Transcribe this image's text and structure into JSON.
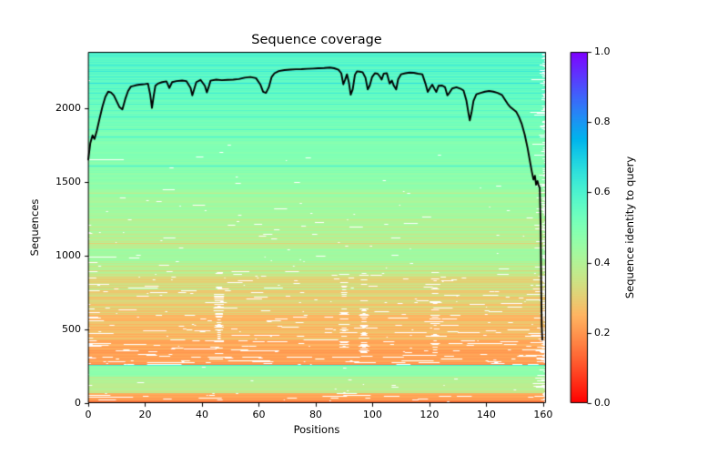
{
  "title": "Sequence coverage",
  "axes": {
    "xlabel": "Positions",
    "ylabel": "Sequences",
    "xlim": [
      0,
      161
    ],
    "ylim": [
      0,
      2380
    ],
    "x_ticks": [
      0,
      20,
      40,
      60,
      80,
      100,
      120,
      140,
      160
    ],
    "y_ticks": [
      0,
      500,
      1000,
      1500,
      2000
    ]
  },
  "colorbar": {
    "label": "Sequence identity to query",
    "ticks": [
      "0.0",
      "0.2",
      "0.4",
      "0.6",
      "0.8",
      "1.0"
    ],
    "tick_values": [
      0.0,
      0.2,
      0.4,
      0.6,
      0.8,
      1.0
    ],
    "colormap": "rainbow_r",
    "vmin": 0.0,
    "vmax": 1.0
  },
  "colors": {
    "background": "#ffffff",
    "coverage_line": "#000000",
    "gap": "#ffffff",
    "spine": "#000000"
  },
  "chart_data": {
    "type": "heatmap",
    "title": "Sequence coverage",
    "xlabel": "Positions",
    "ylabel": "Sequences",
    "colorbar_label": "Sequence identity to query",
    "colormap": "rainbow_r",
    "n_positions": 161,
    "n_sequences": 2380,
    "xlim": [
      0,
      161
    ],
    "ylim": [
      0,
      2380
    ],
    "identity_range": [
      0.0,
      1.0
    ],
    "coverage_line": {
      "name": "number of sequences covering each position",
      "color": "#000000",
      "points": [
        [
          0,
          1650
        ],
        [
          0.7,
          1760
        ],
        [
          1.5,
          1815
        ],
        [
          2.2,
          1790
        ],
        [
          3,
          1845
        ],
        [
          4,
          1930
        ],
        [
          5,
          2010
        ],
        [
          6,
          2075
        ],
        [
          7,
          2110
        ],
        [
          8,
          2105
        ],
        [
          9,
          2085
        ],
        [
          10,
          2045
        ],
        [
          11,
          2005
        ],
        [
          12,
          1990
        ],
        [
          13,
          2060
        ],
        [
          14,
          2115
        ],
        [
          15,
          2145
        ],
        [
          16,
          2150
        ],
        [
          17,
          2155
        ],
        [
          18,
          2158
        ],
        [
          19,
          2160
        ],
        [
          20,
          2162
        ],
        [
          21,
          2165
        ],
        [
          21.8,
          2090
        ],
        [
          22.4,
          2000
        ],
        [
          23,
          2080
        ],
        [
          23.6,
          2150
        ],
        [
          24.5,
          2165
        ],
        [
          26,
          2175
        ],
        [
          27.5,
          2180
        ],
        [
          28.5,
          2135
        ],
        [
          29.5,
          2175
        ],
        [
          31,
          2182
        ],
        [
          33,
          2186
        ],
        [
          34.5,
          2182
        ],
        [
          36,
          2135
        ],
        [
          36.6,
          2085
        ],
        [
          37.3,
          2130
        ],
        [
          38,
          2175
        ],
        [
          39.5,
          2190
        ],
        [
          41,
          2150
        ],
        [
          41.7,
          2105
        ],
        [
          42.4,
          2145
        ],
        [
          43,
          2185
        ],
        [
          45,
          2192
        ],
        [
          47,
          2188
        ],
        [
          49,
          2190
        ],
        [
          51,
          2192
        ],
        [
          53,
          2196
        ],
        [
          55,
          2205
        ],
        [
          57,
          2210
        ],
        [
          59,
          2202
        ],
        [
          60.5,
          2160
        ],
        [
          61.5,
          2110
        ],
        [
          62.5,
          2102
        ],
        [
          63.5,
          2140
        ],
        [
          64.5,
          2210
        ],
        [
          65.5,
          2235
        ],
        [
          67,
          2250
        ],
        [
          69,
          2257
        ],
        [
          71,
          2260
        ],
        [
          73,
          2262
        ],
        [
          75,
          2263
        ],
        [
          77,
          2265
        ],
        [
          79,
          2267
        ],
        [
          81,
          2269
        ],
        [
          83,
          2271
        ],
        [
          85,
          2274
        ],
        [
          86.5,
          2269
        ],
        [
          88,
          2259
        ],
        [
          89,
          2235
        ],
        [
          89.7,
          2160
        ],
        [
          90.3,
          2190
        ],
        [
          91,
          2228
        ],
        [
          91.7,
          2170
        ],
        [
          92.3,
          2090
        ],
        [
          93,
          2125
        ],
        [
          93.8,
          2225
        ],
        [
          94.5,
          2248
        ],
        [
          95.5,
          2246
        ],
        [
          96.5,
          2242
        ],
        [
          97.5,
          2205
        ],
        [
          98.3,
          2125
        ],
        [
          99,
          2152
        ],
        [
          99.8,
          2208
        ],
        [
          100.8,
          2235
        ],
        [
          101.8,
          2232
        ],
        [
          102.6,
          2212
        ],
        [
          103.2,
          2192
        ],
        [
          103.9,
          2232
        ],
        [
          105,
          2236
        ],
        [
          106,
          2165
        ],
        [
          106.8,
          2185
        ],
        [
          107.5,
          2150
        ],
        [
          108.3,
          2125
        ],
        [
          109,
          2195
        ],
        [
          110,
          2228
        ],
        [
          111.5,
          2235
        ],
        [
          113,
          2240
        ],
        [
          114.5,
          2238
        ],
        [
          116,
          2232
        ],
        [
          117.5,
          2228
        ],
        [
          118.6,
          2165
        ],
        [
          119.4,
          2108
        ],
        [
          120.2,
          2135
        ],
        [
          121,
          2158
        ],
        [
          121.8,
          2128
        ],
        [
          122.4,
          2108
        ],
        [
          123.2,
          2150
        ],
        [
          124.5,
          2152
        ],
        [
          125.5,
          2140
        ],
        [
          126.3,
          2085
        ],
        [
          127,
          2102
        ],
        [
          128,
          2132
        ],
        [
          129.5,
          2140
        ],
        [
          131,
          2130
        ],
        [
          132,
          2118
        ],
        [
          133,
          2050
        ],
        [
          133.7,
          1968
        ],
        [
          134.2,
          1915
        ],
        [
          134.8,
          1968
        ],
        [
          135.5,
          2048
        ],
        [
          136.5,
          2092
        ],
        [
          138,
          2102
        ],
        [
          139.5,
          2110
        ],
        [
          141,
          2115
        ],
        [
          142.5,
          2110
        ],
        [
          144,
          2102
        ],
        [
          145.5,
          2088
        ],
        [
          146.5,
          2058
        ],
        [
          147.5,
          2028
        ],
        [
          148.5,
          2005
        ],
        [
          149.5,
          1990
        ],
        [
          150.5,
          1975
        ],
        [
          151.5,
          1938
        ],
        [
          152.5,
          1890
        ],
        [
          153.5,
          1820
        ],
        [
          154.5,
          1730
        ],
        [
          155.3,
          1645
        ],
        [
          156,
          1570
        ],
        [
          156.6,
          1515
        ],
        [
          157.1,
          1540
        ],
        [
          157.5,
          1480
        ],
        [
          158,
          1505
        ],
        [
          158.4,
          1475
        ],
        [
          158.8,
          1460
        ],
        [
          159.1,
          1200
        ],
        [
          159.3,
          800
        ],
        [
          159.5,
          520
        ],
        [
          159.7,
          430
        ]
      ]
    },
    "identity_bands": [
      {
        "from": 0,
        "to": 18,
        "identity": [
          0.15,
          0.16
        ],
        "gap_density": 0.1,
        "jitter": 0.02,
        "late_start_p": 0.05,
        "trunc_p": 0.25,
        "streaky": false
      },
      {
        "from": 18,
        "to": 68,
        "identity": [
          0.21,
          0.24
        ],
        "gap_density": 0.35,
        "jitter": 0.02,
        "late_start_p": 0.15,
        "trunc_p": 0.45,
        "streaky": false
      },
      {
        "from": 68,
        "to": 180,
        "identity": [
          0.36,
          0.4
        ],
        "gap_density": 0.1,
        "jitter": 0.03,
        "late_start_p": 0.05,
        "trunc_p": 0.3,
        "streaky": false
      },
      {
        "from": 180,
        "to": 250,
        "identity": [
          0.47,
          0.47
        ],
        "gap_density": 0.04,
        "jitter": 0.01,
        "late_start_p": 0.02,
        "trunc_p": 0.25,
        "streaky": false
      },
      {
        "from": 250,
        "to": 258,
        "identity": [
          0.62,
          0.62
        ],
        "gap_density": 0.02,
        "jitter": 0.0,
        "late_start_p": 0.0,
        "trunc_p": 0.1,
        "streaky": false
      },
      {
        "from": 258,
        "to": 330,
        "identity": [
          0.2,
          0.22
        ],
        "gap_density": 0.65,
        "jitter": 0.03,
        "late_start_p": 0.3,
        "trunc_p": 0.6,
        "streaky": false
      },
      {
        "from": 330,
        "to": 480,
        "identity": [
          0.22,
          0.26
        ],
        "gap_density": 0.5,
        "jitter": 0.03,
        "late_start_p": 0.25,
        "trunc_p": 0.55,
        "streaky": true
      },
      {
        "from": 480,
        "to": 700,
        "identity": [
          0.26,
          0.3
        ],
        "gap_density": 0.3,
        "jitter": 0.04,
        "late_start_p": 0.15,
        "trunc_p": 0.45,
        "streaky": true
      },
      {
        "from": 700,
        "to": 900,
        "identity": [
          0.3,
          0.36
        ],
        "gap_density": 0.25,
        "jitter": 0.05,
        "late_start_p": 0.12,
        "trunc_p": 0.4,
        "streaky": true
      },
      {
        "from": 900,
        "to": 960,
        "identity": [
          0.37,
          0.4
        ],
        "gap_density": 0.15,
        "jitter": 0.04,
        "late_start_p": 0.08,
        "trunc_p": 0.35,
        "streaky": false
      },
      {
        "from": 960,
        "to": 1040,
        "identity": [
          0.44,
          0.44
        ],
        "gap_density": 0.1,
        "jitter": 0.02,
        "late_start_p": 0.05,
        "trunc_p": 0.3,
        "streaky": false
      },
      {
        "from": 1040,
        "to": 1250,
        "identity": [
          0.38,
          0.42
        ],
        "gap_density": 0.15,
        "jitter": 0.04,
        "late_start_p": 0.06,
        "trunc_p": 0.35,
        "streaky": false
      },
      {
        "from": 1250,
        "to": 1500,
        "identity": [
          0.42,
          0.46
        ],
        "gap_density": 0.1,
        "jitter": 0.03,
        "late_start_p": 0.05,
        "trunc_p": 0.3,
        "streaky": false
      },
      {
        "from": 1500,
        "to": 1750,
        "identity": [
          0.47,
          0.5
        ],
        "gap_density": 0.05,
        "jitter": 0.02,
        "late_start_p": 0.03,
        "trunc_p": 0.3,
        "streaky": false
      },
      {
        "from": 1750,
        "to": 2050,
        "identity": [
          0.5,
          0.54
        ],
        "gap_density": 0.03,
        "jitter": 0.02,
        "late_start_p": 0.03,
        "trunc_p": 0.35,
        "streaky": false
      },
      {
        "from": 2050,
        "to": 2380,
        "identity": [
          0.54,
          0.58
        ],
        "gap_density": 0.02,
        "jitter": 0.02,
        "late_start_p": 0.02,
        "trunc_p": 0.4,
        "streaky": false
      }
    ],
    "identity_stripes": [
      {
        "seq": 2368,
        "rows": 7,
        "identity": 0.61
      },
      {
        "seq": 2352,
        "rows": 5,
        "identity": 0.63
      },
      {
        "seq": 2338,
        "rows": 6,
        "identity": 0.59
      },
      {
        "seq": 2322,
        "rows": 5,
        "identity": 0.62
      },
      {
        "seq": 2306,
        "rows": 5,
        "identity": 0.6
      },
      {
        "seq": 2290,
        "rows": 6,
        "identity": 0.63
      },
      {
        "seq": 2274,
        "rows": 5,
        "identity": 0.58
      },
      {
        "seq": 2258,
        "rows": 5,
        "identity": 0.61
      },
      {
        "seq": 2242,
        "rows": 6,
        "identity": 0.64
      },
      {
        "seq": 2226,
        "rows": 5,
        "identity": 0.59
      },
      {
        "seq": 2208,
        "rows": 6,
        "identity": 0.62
      },
      {
        "seq": 2188,
        "rows": 5,
        "identity": 0.6
      },
      {
        "seq": 2162,
        "rows": 8,
        "identity": 0.66
      },
      {
        "seq": 2128,
        "rows": 6,
        "identity": 0.6
      },
      {
        "seq": 2096,
        "rows": 5,
        "identity": 0.62
      },
      {
        "seq": 2062,
        "rows": 5,
        "identity": 0.59
      },
      {
        "seq": 2020,
        "rows": 6,
        "identity": 0.61
      },
      {
        "seq": 1980,
        "rows": 5,
        "identity": 0.58
      },
      {
        "seq": 1938,
        "rows": 5,
        "identity": 0.6
      },
      {
        "seq": 1896,
        "rows": 5,
        "identity": 0.57
      },
      {
        "seq": 1850,
        "rows": 5,
        "identity": 0.59
      },
      {
        "seq": 1800,
        "rows": 5,
        "identity": 0.6
      },
      {
        "seq": 1605,
        "rows": 6,
        "identity": 0.62
      },
      {
        "seq": 1420,
        "rows": 6,
        "identity": 0.38
      },
      {
        "seq": 1330,
        "rows": 5,
        "identity": 0.39
      },
      {
        "seq": 1240,
        "rows": 5,
        "identity": 0.37
      },
      {
        "seq": 1165,
        "rows": 5,
        "identity": 0.38
      },
      {
        "seq": 1080,
        "rows": 5,
        "identity": 0.3
      },
      {
        "seq": 830,
        "rows": 6,
        "identity": 0.28
      },
      {
        "seq": 770,
        "rows": 5,
        "identity": 0.42
      },
      {
        "seq": 620,
        "rows": 5,
        "identity": 0.36
      },
      {
        "seq": 560,
        "rows": 5,
        "identity": 0.24
      },
      {
        "seq": 430,
        "rows": 5,
        "identity": 0.3
      }
    ],
    "gap_streak_positions": [
      46,
      90,
      97,
      122
    ]
  }
}
